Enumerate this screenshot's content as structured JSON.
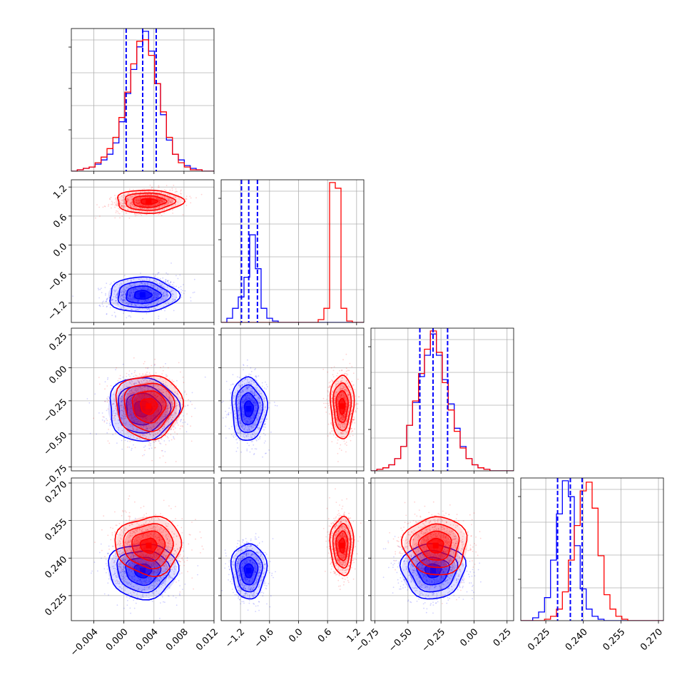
{
  "chart_data": {
    "type": "corner",
    "grid": true,
    "colors": {
      "series_a": "#0000ff",
      "series_b": "#ff0000",
      "quantile_lines": "#0000ff"
    },
    "parameters": [
      {
        "range": [
          -0.007,
          0.012
        ],
        "ticks": [
          -0.004,
          0.0,
          0.004,
          0.008,
          0.012
        ],
        "tick_labels": [
          "−0.004",
          "0.000",
          "0.004",
          "0.008",
          "0.012"
        ],
        "quantiles": [
          0.0003,
          0.0025,
          0.0043
        ]
      },
      {
        "range": [
          -1.6,
          1.35
        ],
        "ticks": [
          -1.2,
          -0.6,
          0.0,
          0.6,
          1.2
        ],
        "tick_labels": [
          "−1.2",
          "−0.6",
          "0.0",
          "0.6",
          "1.2"
        ],
        "quantiles": [
          -1.18,
          -1.03,
          -0.85
        ]
      },
      {
        "range": [
          -0.78,
          0.3
        ],
        "ticks": [
          -0.75,
          -0.5,
          -0.25,
          0.0,
          0.25
        ],
        "tick_labels": [
          "−0.75",
          "−0.50",
          "−0.25",
          "0.00",
          "0.25"
        ],
        "quantiles": [
          -0.41,
          -0.31,
          -0.2
        ]
      },
      {
        "range": [
          0.215,
          0.272
        ],
        "ticks": [
          0.225,
          0.24,
          0.255,
          0.27
        ],
        "tick_labels": [
          "0.225",
          "0.240",
          "0.255",
          "0.270"
        ],
        "quantiles": [
          0.2297,
          0.2348,
          0.2395
        ]
      }
    ],
    "series": [
      {
        "color": "#0000ff",
        "mean": [
          0.0025,
          -1.03,
          -0.31,
          0.235
        ],
        "std": [
          0.0023,
          0.18,
          0.12,
          0.0055
        ],
        "hist": [
          {
            "edges_range": [
              -0.007,
              0.012
            ],
            "counts": [
              0,
              1,
              2,
              3,
              5,
              8,
              12,
              20,
              35,
              55,
              72,
              88,
              99,
              85,
              62,
              40,
              22,
              12,
              8,
              4,
              2,
              1,
              0,
              0
            ]
          },
          {
            "edges_range": [
              -1.6,
              1.35
            ],
            "counts": [
              0,
              3,
              10,
              18,
              32,
              62,
              38,
              10,
              3,
              1,
              0,
              0,
              0,
              0,
              0,
              0,
              0,
              0,
              0,
              0,
              0,
              0,
              0,
              0,
              0
            ]
          },
          {
            "edges_range": [
              -0.78,
              0.3
            ],
            "counts": [
              0,
              1,
              2,
              4,
              8,
              16,
              30,
              45,
              62,
              76,
              90,
              76,
              60,
              44,
              28,
              16,
              8,
              4,
              2,
              1,
              0,
              0,
              0,
              0
            ]
          },
          {
            "edges_range": [
              0.215,
              0.272
            ],
            "counts": [
              0,
              0,
              2,
              6,
              16,
              42,
              74,
              97,
              86,
              52,
              22,
              8,
              3,
              1,
              0,
              0,
              0,
              0,
              0,
              0,
              0,
              0,
              0,
              0
            ]
          }
        ]
      },
      {
        "color": "#ff0000",
        "mean": [
          0.0033,
          0.9,
          -0.29,
          0.245
        ],
        "std": [
          0.0022,
          0.12,
          0.12,
          0.0058
        ],
        "hist": [
          {
            "edges_range": [
              -0.007,
              0.012
            ],
            "counts": [
              0,
              1,
              2,
              3,
              6,
              10,
              16,
              24,
              38,
              56,
              76,
              92,
              93,
              82,
              62,
              42,
              24,
              12,
              6,
              3,
              1,
              1,
              0,
              0
            ]
          },
          {
            "edges_range": [
              -1.6,
              1.35
            ],
            "counts": [
              0,
              0,
              0,
              0,
              0,
              0,
              0,
              0,
              0,
              0,
              0,
              0,
              0,
              0,
              0,
              0,
              0,
              2,
              10,
              99,
              95,
              10,
              1,
              0,
              0
            ]
          },
          {
            "edges_range": [
              -0.78,
              0.3
            ],
            "counts": [
              0,
              1,
              2,
              4,
              8,
              16,
              30,
              46,
              64,
              80,
              92,
              78,
              58,
              40,
              26,
              15,
              8,
              4,
              2,
              1,
              0,
              0,
              0,
              0
            ]
          },
          {
            "edges_range": [
              0.215,
              0.272
            ],
            "counts": [
              0,
              0,
              0,
              0,
              1,
              3,
              8,
              20,
              42,
              66,
              90,
              96,
              78,
              45,
              18,
              8,
              3,
              1,
              0,
              0,
              0,
              0,
              0,
              0
            ]
          }
        ]
      }
    ]
  }
}
